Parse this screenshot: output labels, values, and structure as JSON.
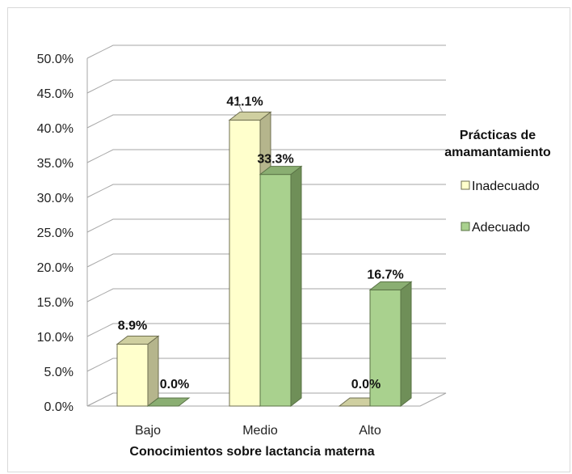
{
  "chart_data": {
    "type": "bar",
    "categories": [
      "Bajo",
      "Medio",
      "Alto"
    ],
    "series": [
      {
        "name": "Inadecuado",
        "values": [
          8.9,
          41.1,
          0.0
        ],
        "labels": [
          "8.9%",
          "41.1%",
          "0.0%"
        ]
      },
      {
        "name": "Adecuado",
        "values": [
          0.0,
          33.3,
          16.7
        ],
        "labels": [
          "0.0%",
          "33.3%",
          "16.7%"
        ]
      }
    ],
    "y_ticks": [
      "0.0%",
      "5.0%",
      "10.0%",
      "15.0%",
      "20.0%",
      "25.0%",
      "30.0%",
      "35.0%",
      "40.0%",
      "45.0%",
      "50.0%"
    ],
    "ylim": [
      0,
      50
    ],
    "xlabel": "Conocimientos sobre lactancia materna",
    "ylabel": "",
    "legend_title_lines": [
      "Prácticas de",
      "amamantamiento"
    ],
    "legend_position": "right",
    "grid": true,
    "colors": {
      "Inadecuado": {
        "front": "#ffffcc",
        "side": "#b5b58c",
        "top": "#cfcfa0",
        "stroke": "#6e6e50"
      },
      "Adecuado": {
        "front": "#a9d18e",
        "side": "#6f8f58",
        "top": "#8aae72",
        "stroke": "#5a7346"
      }
    }
  }
}
